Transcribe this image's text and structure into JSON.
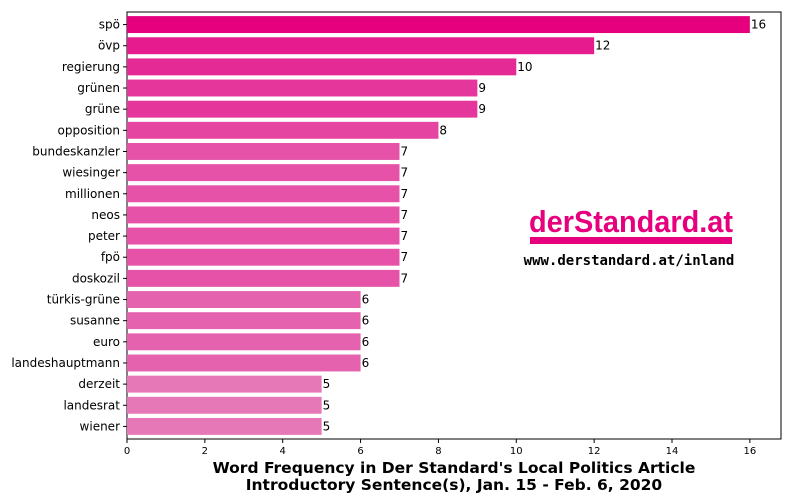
{
  "chart_data": {
    "type": "bar",
    "orientation": "horizontal",
    "categories": [
      "spö",
      "övp",
      "regierung",
      "grünen",
      "grüne",
      "opposition",
      "bundeskanzler",
      "wiesinger",
      "millionen",
      "neos",
      "peter",
      "fpö",
      "doskozil",
      "türkis-grüne",
      "susanne",
      "euro",
      "landeshauptmann",
      "derzeit",
      "landesrat",
      "wiener"
    ],
    "values": [
      16,
      12,
      10,
      9,
      9,
      8,
      7,
      7,
      7,
      7,
      7,
      7,
      7,
      6,
      6,
      6,
      6,
      5,
      5,
      5
    ],
    "xlabel_lines": [
      "Word Frequency in Der Standard's Local Politics Article",
      "Introductory Sentence(s), Jan. 15 - Feb. 6, 2020"
    ],
    "xlim": [
      0,
      16.8
    ],
    "xticks": [
      0,
      2,
      4,
      6,
      8,
      10,
      12,
      14,
      16
    ],
    "grid": false,
    "colors": {
      "bar_by_value": {
        "16": "#e6007e",
        "12": "#e61b8d",
        "10": "#e32a95",
        "9": "#e5379b",
        "8": "#e544a1",
        "7": "#e552a8",
        "6": "#e563ae",
        "5": "#e678b7"
      }
    }
  },
  "watermark": {
    "logo": "derStandard.at",
    "url": "www.derstandard.at/inland",
    "logo_color": "#e6007e"
  }
}
